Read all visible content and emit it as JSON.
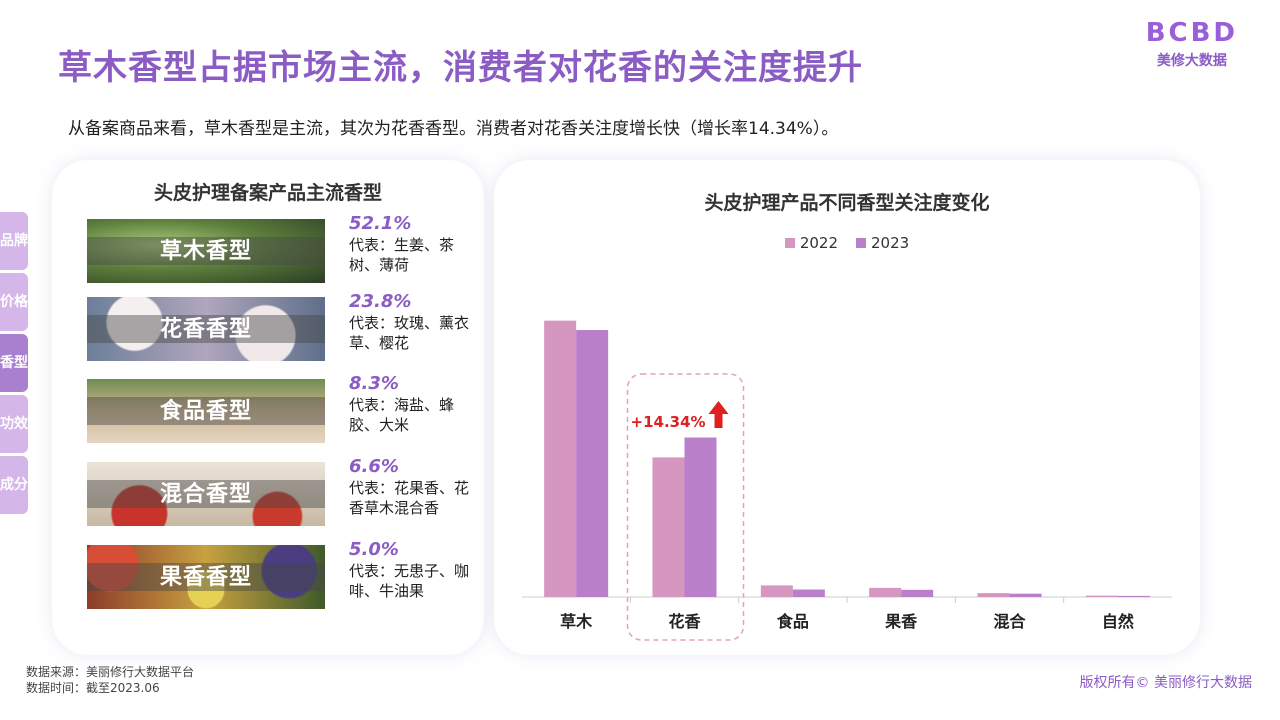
{
  "header": {
    "title": "草木香型占据市场主流，消费者对花香的关注度提升",
    "subtitle": "从备案商品来看，草木香型是主流，其次为花香香型。消费者对花香关注度增长快（增长率14.34%）。"
  },
  "brand": {
    "logo": "BCBD",
    "name": "美修大数据"
  },
  "side_nav": [
    {
      "label": "品牌",
      "active": false
    },
    {
      "label": "价格",
      "active": false
    },
    {
      "label": "香型",
      "active": true
    },
    {
      "label": "功效",
      "active": false
    },
    {
      "label": "成分",
      "active": false
    }
  ],
  "left_panel": {
    "title": "头皮护理备案产品主流香型",
    "items": [
      {
        "label": "草木香型",
        "percent": "52.1%",
        "rep": "代表：生姜、茶树、薄荷"
      },
      {
        "label": "花香香型",
        "percent": "23.8%",
        "rep": "代表：玫瑰、薰衣草、樱花"
      },
      {
        "label": "食品香型",
        "percent": "8.3%",
        "rep": "代表：海盐、蜂胶、大米"
      },
      {
        "label": "混合香型",
        "percent": "6.6%",
        "rep": "代表：花果香、花香草木混合香"
      },
      {
        "label": "果香香型",
        "percent": "5.0%",
        "rep": "代表：无患子、咖啡、牛油果"
      }
    ]
  },
  "chart_data": {
    "type": "bar",
    "title": "头皮护理产品不同香型关注度变化",
    "categories": [
      "草木",
      "花香",
      "食品",
      "果香",
      "混合",
      "自然"
    ],
    "series": [
      {
        "name": "2022",
        "color": "#d596bf",
        "values": [
          100,
          50.5,
          4.2,
          3.3,
          1.4,
          0.5
        ]
      },
      {
        "name": "2023",
        "color": "#b97fc8",
        "values": [
          96.6,
          57.7,
          2.7,
          2.6,
          1.2,
          0.4
        ]
      }
    ],
    "ylim": [
      0,
      110
    ],
    "legend": "top-center",
    "grid": false,
    "annotation": {
      "category": "花香",
      "text": "+14.34%",
      "color": "#e02020"
    }
  },
  "footer": {
    "source": "数据来源：美丽修行大数据平台",
    "time": "数据时间：截至2023.06",
    "copyright": "版权所有© 美丽修行大数据"
  },
  "colors": {
    "accent": "#8a5cc4",
    "tab": "#d4b7e8",
    "tab_active": "#a97fd0"
  }
}
